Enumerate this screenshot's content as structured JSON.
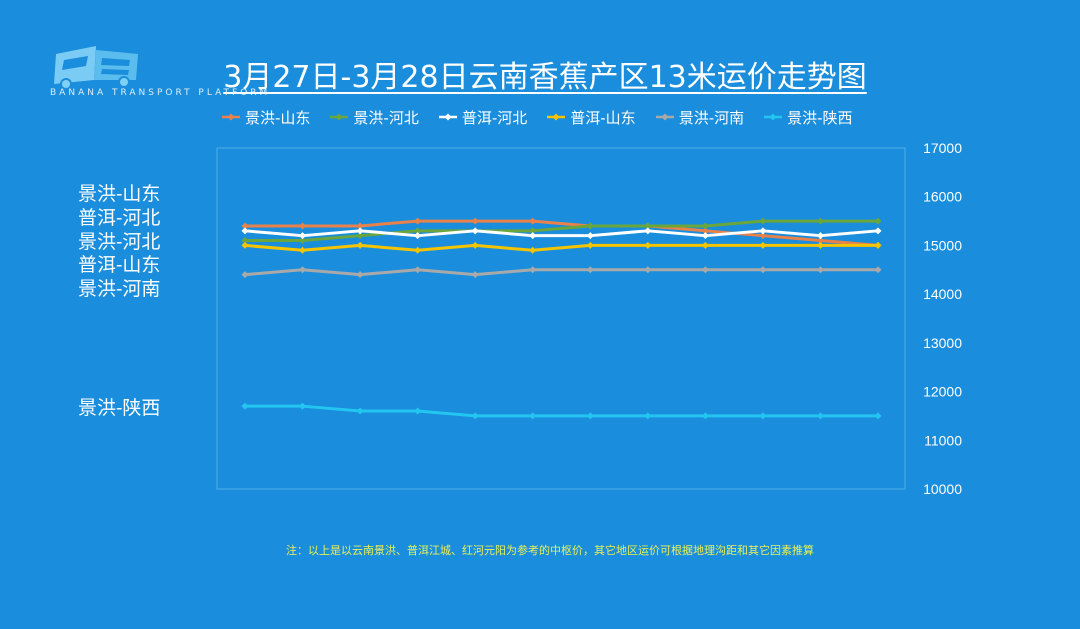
{
  "brand": {
    "logo_text": "BANANA TRANSPORT PLATFORM"
  },
  "title": "3月27日-3月28日云南香蕉产区13米运价走势图",
  "note": "注：以上是以云南景洪、普洱江城、红河元阳为参考的中枢价，其它地区运价可根据地理沟距和其它因素推算",
  "side_labels": [
    "景洪-山东",
    "普洱-河北",
    "景洪-河北",
    "普洱-山东",
    "景洪-河南",
    "景洪-陕西"
  ],
  "colors": {
    "background": "#1a8ddc",
    "text": "#ffffff",
    "note": "#e8f05a"
  },
  "chart_data": {
    "type": "line",
    "x_count": 12,
    "ylim": [
      10000,
      17000
    ],
    "yticks": [
      10000,
      11000,
      12000,
      13000,
      14000,
      15000,
      16000,
      17000
    ],
    "y_axis_position": "right",
    "grid": false,
    "legend_position": "top",
    "series": [
      {
        "name": "景洪-山东",
        "color": "#e8824a",
        "values": [
          15400,
          15400,
          15400,
          15500,
          15500,
          15500,
          15400,
          15400,
          15300,
          15200,
          15100,
          15000
        ]
      },
      {
        "name": "景洪-河北",
        "color": "#6aa63c",
        "values": [
          15100,
          15100,
          15200,
          15300,
          15300,
          15300,
          15400,
          15400,
          15400,
          15500,
          15500,
          15500
        ]
      },
      {
        "name": "普洱-河北",
        "color": "#ffffff",
        "values": [
          15300,
          15200,
          15300,
          15200,
          15300,
          15200,
          15200,
          15300,
          15200,
          15300,
          15200,
          15300
        ]
      },
      {
        "name": "普洱-山东",
        "color": "#f5c400",
        "values": [
          15000,
          14900,
          15000,
          14900,
          15000,
          14900,
          15000,
          15000,
          15000,
          15000,
          15000,
          15000
        ]
      },
      {
        "name": "景洪-河南",
        "color": "#a9a9a9",
        "values": [
          14400,
          14500,
          14400,
          14500,
          14400,
          14500,
          14500,
          14500,
          14500,
          14500,
          14500,
          14500
        ]
      },
      {
        "name": "景洪-陕西",
        "color": "#22c6f0",
        "values": [
          11700,
          11700,
          11600,
          11600,
          11500,
          11500,
          11500,
          11500,
          11500,
          11500,
          11500,
          11500
        ]
      }
    ]
  }
}
